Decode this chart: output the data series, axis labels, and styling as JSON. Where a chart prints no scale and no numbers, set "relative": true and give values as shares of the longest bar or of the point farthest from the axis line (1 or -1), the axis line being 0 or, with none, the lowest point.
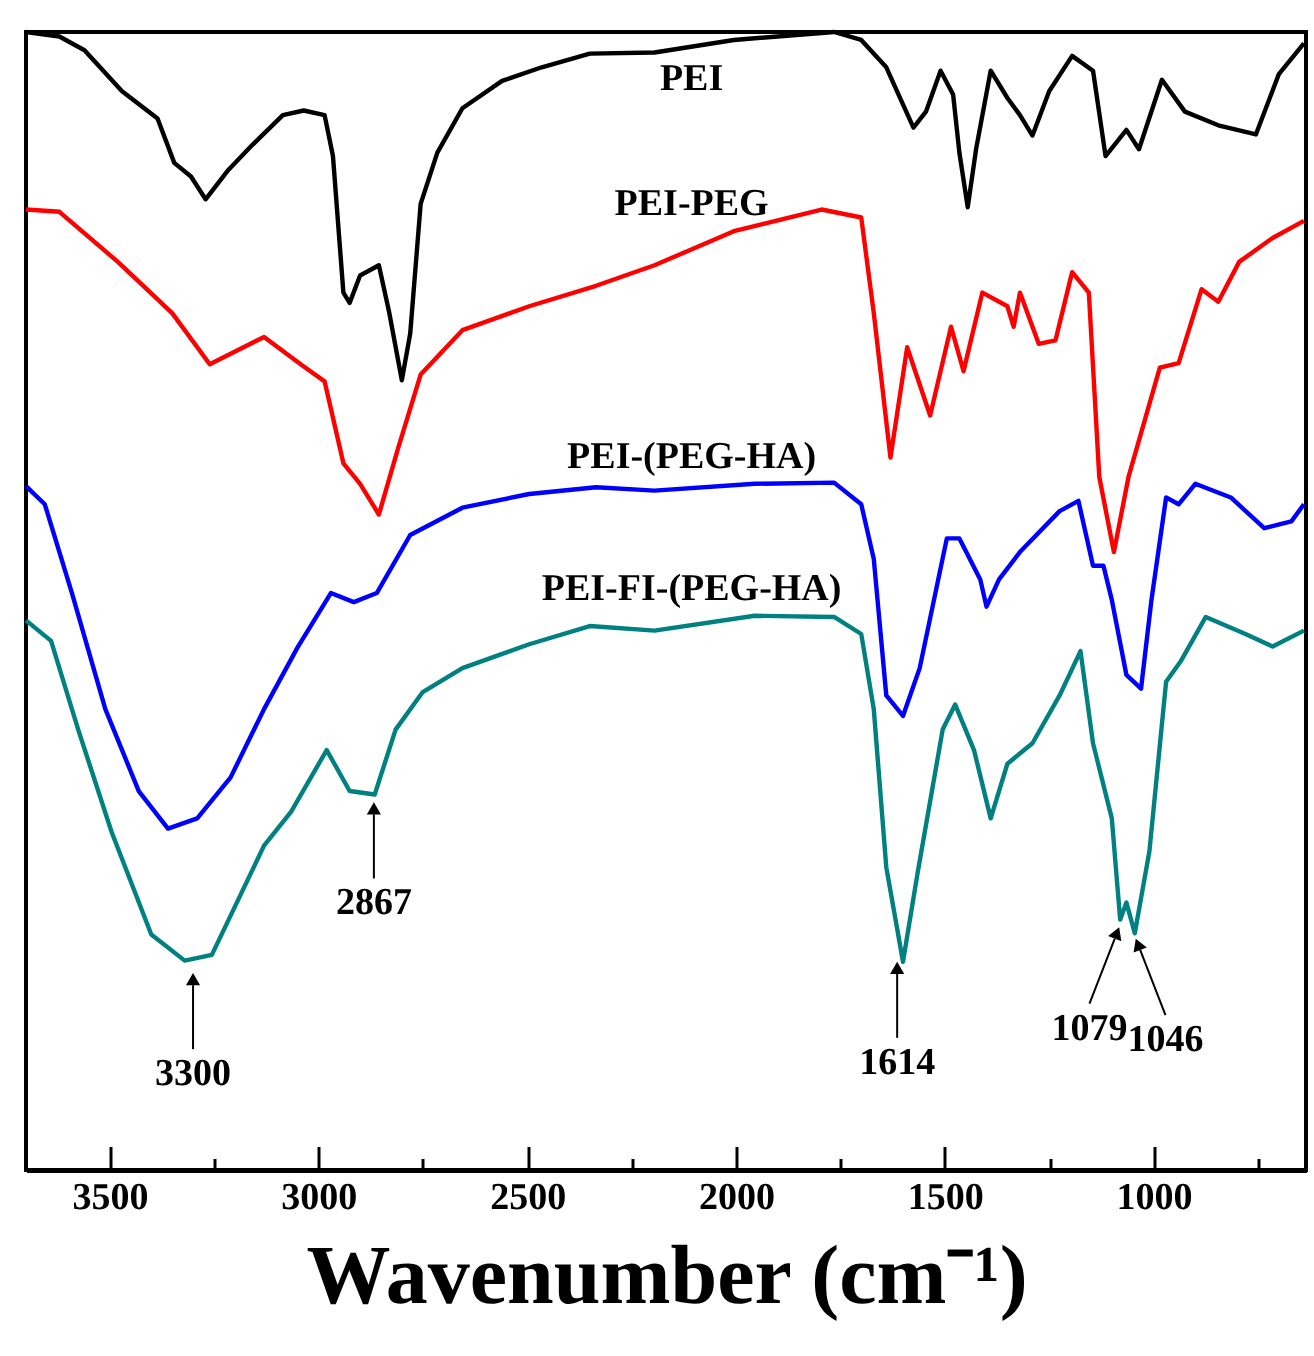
{
  "chart_data": {
    "type": "line",
    "relative": true,
    "xlabel": "Wavenumber (cm⁻¹)",
    "xlim": [
      3700,
      635
    ],
    "xticks": [
      3500,
      {
        "value": 3250,
        "label": null
      },
      3000,
      {
        "value": 2750,
        "label": null
      },
      2500,
      {
        "value": 2250,
        "label": null
      },
      2000,
      {
        "value": 1750,
        "label": null
      },
      1500,
      {
        "value": 1250,
        "label": null
      },
      1000,
      {
        "value": 750,
        "label": null
      }
    ],
    "series": [
      {
        "name": "PEI",
        "color": "#000000",
        "x": [
          3700,
          3620,
          3560,
          3470,
          3385,
          3345,
          3305,
          3270,
          3215,
          3160,
          3085,
          3035,
          2985,
          2965,
          2940,
          2925,
          2900,
          2855,
          2830,
          2800,
          2780,
          2755,
          2715,
          2655,
          2560,
          2465,
          2350,
          2195,
          2005,
          1765,
          1700,
          1640,
          1575,
          1545,
          1510,
          1480,
          1465,
          1445,
          1425,
          1390,
          1350,
          1320,
          1290,
          1250,
          1195,
          1145,
          1115,
          1065,
          1035,
          980,
          925,
          845,
          755,
          700,
          640
        ],
        "values": [
          1.0,
          0.996,
          0.984,
          0.948,
          0.924,
          0.885,
          0.873,
          0.853,
          0.879,
          0.9,
          0.927,
          0.931,
          0.927,
          0.891,
          0.771,
          0.762,
          0.786,
          0.795,
          0.753,
          0.694,
          0.735,
          0.849,
          0.894,
          0.933,
          0.957,
          0.969,
          0.981,
          0.982,
          0.993,
          1.0,
          0.993,
          0.969,
          0.916,
          0.93,
          0.966,
          0.945,
          0.894,
          0.846,
          0.897,
          0.966,
          0.942,
          0.927,
          0.909,
          0.948,
          0.979,
          0.966,
          0.891,
          0.914,
          0.897,
          0.958,
          0.93,
          0.918,
          0.91,
          0.963,
          0.99
        ]
      },
      {
        "name": "PEI-PEG",
        "color": "#ff0000",
        "x": [
          3700,
          3620,
          3480,
          3350,
          3260,
          3130,
          3035,
          2985,
          2940,
          2900,
          2855,
          2810,
          2755,
          2655,
          2495,
          2335,
          2195,
          2005,
          1795,
          1700,
          1670,
          1630,
          1590,
          1535,
          1485,
          1455,
          1410,
          1350,
          1335,
          1320,
          1275,
          1235,
          1195,
          1155,
          1130,
          1095,
          1060,
          985,
          940,
          885,
          845,
          795,
          715,
          640
        ],
        "values": [
          0.844,
          0.842,
          0.798,
          0.753,
          0.708,
          0.732,
          0.706,
          0.693,
          0.621,
          0.603,
          0.576,
          0.633,
          0.699,
          0.738,
          0.759,
          0.777,
          0.795,
          0.825,
          0.844,
          0.837,
          0.753,
          0.626,
          0.723,
          0.663,
          0.741,
          0.702,
          0.771,
          0.759,
          0.741,
          0.771,
          0.726,
          0.729,
          0.789,
          0.771,
          0.609,
          0.543,
          0.609,
          0.705,
          0.709,
          0.774,
          0.763,
          0.798,
          0.819,
          0.834
        ]
      },
      {
        "name": "PEI-(PEG-HA)",
        "color": "#0000ff",
        "x": [
          3700,
          3655,
          3590,
          3510,
          3430,
          3360,
          3290,
          3210,
          3130,
          3050,
          2970,
          2915,
          2860,
          2780,
          2655,
          2495,
          2335,
          2195,
          1955,
          1765,
          1700,
          1670,
          1640,
          1600,
          1560,
          1495,
          1465,
          1415,
          1400,
          1370,
          1320,
          1225,
          1180,
          1145,
          1120,
          1100,
          1065,
          1030,
          1005,
          970,
          940,
          900,
          815,
          735,
          670,
          640
        ],
        "values": [
          0.601,
          0.585,
          0.507,
          0.405,
          0.333,
          0.3,
          0.309,
          0.345,
          0.405,
          0.459,
          0.507,
          0.499,
          0.507,
          0.558,
          0.582,
          0.594,
          0.6,
          0.597,
          0.603,
          0.604,
          0.585,
          0.537,
          0.417,
          0.399,
          0.441,
          0.555,
          0.555,
          0.519,
          0.495,
          0.519,
          0.543,
          0.579,
          0.588,
          0.531,
          0.531,
          0.501,
          0.435,
          0.423,
          0.501,
          0.591,
          0.585,
          0.603,
          0.591,
          0.564,
          0.57,
          0.585
        ]
      },
      {
        "name": "PEI-FI-(PEG-HA)",
        "color": "#008080",
        "x": [
          3700,
          3640,
          3575,
          3495,
          3400,
          3320,
          3255,
          3130,
          3065,
          2980,
          2925,
          2865,
          2815,
          2750,
          2655,
          2495,
          2350,
          2195,
          1955,
          1765,
          1700,
          1670,
          1640,
          1600,
          1565,
          1505,
          1475,
          1430,
          1390,
          1350,
          1290,
          1225,
          1175,
          1145,
          1100,
          1080,
          1065,
          1045,
          1010,
          970,
          935,
          875,
          780,
          715,
          640
        ],
        "values": [
          0.483,
          0.465,
          0.387,
          0.297,
          0.207,
          0.184,
          0.189,
          0.285,
          0.315,
          0.369,
          0.333,
          0.33,
          0.387,
          0.42,
          0.441,
          0.462,
          0.478,
          0.474,
          0.487,
          0.486,
          0.471,
          0.405,
          0.266,
          0.183,
          0.261,
          0.387,
          0.409,
          0.369,
          0.309,
          0.357,
          0.375,
          0.417,
          0.456,
          0.375,
          0.309,
          0.22,
          0.235,
          0.208,
          0.28,
          0.429,
          0.447,
          0.486,
          0.471,
          0.46,
          0.474
        ]
      }
    ],
    "annotations": [
      {
        "text": "3300",
        "x": 3300,
        "y": 0.18
      },
      {
        "text": "2867",
        "x": 2867,
        "y": 0.33
      },
      {
        "text": "1614",
        "x": 1614,
        "y": 0.19
      },
      {
        "text": "1079",
        "x": 1079,
        "y": 0.22
      },
      {
        "text": "1046",
        "x": 1046,
        "y": 0.21
      }
    ]
  }
}
